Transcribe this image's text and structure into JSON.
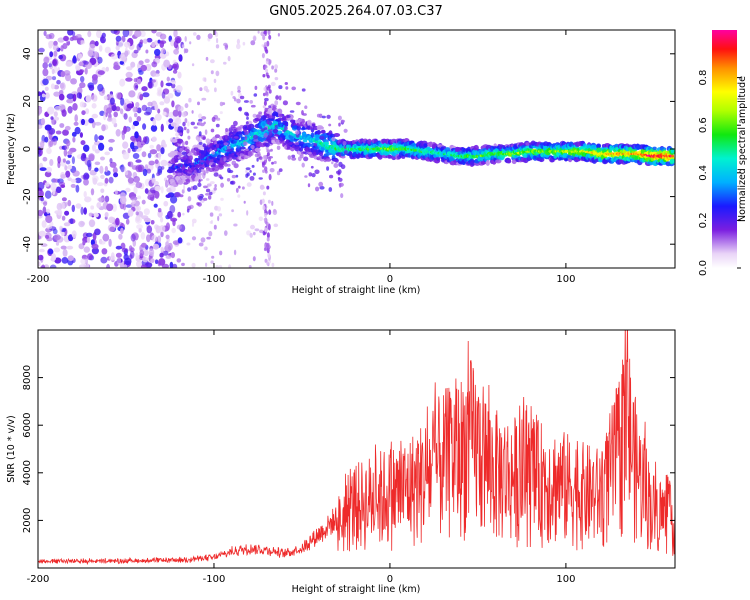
{
  "figure": {
    "title": "GN05.2025.264.07.03.C37"
  },
  "chart_data": [
    {
      "type": "heatmap",
      "name": "spectrogram",
      "title": "GN05.2025.264.07.03.C37",
      "xlabel": "Height of straight line (km)",
      "ylabel": "Frequency (Hz)",
      "xlim": [
        -200,
        162
      ],
      "ylim": [
        -50,
        50
      ],
      "x_ticks": [
        -200,
        -100,
        0,
        100
      ],
      "y_ticks": [
        -40,
        -20,
        0,
        20,
        40
      ],
      "colorbar": {
        "label": "Normalized spectral amplitude",
        "range": [
          0.0,
          1.0
        ],
        "ticks": [
          "0.0",
          "0.2",
          "0.4",
          "0.6",
          "0.8"
        ]
      },
      "ridge": {
        "x": [
          -125,
          -110,
          -100,
          -90,
          -80,
          -72,
          -65,
          -55,
          -45,
          -38,
          -30,
          -20,
          -10,
          0,
          10,
          20,
          30,
          40,
          50,
          60,
          70,
          80,
          90,
          100,
          110,
          120,
          130,
          140,
          150,
          160
        ],
        "freq": [
          -8,
          -6,
          -2,
          1,
          4,
          8,
          10,
          6,
          4,
          2,
          0,
          0,
          0,
          0,
          0,
          -1,
          -2,
          -3,
          -3,
          -2,
          -2,
          -1,
          -1,
          -1,
          -1,
          -2,
          -2,
          -2,
          -3,
          -3
        ],
        "amplitude": [
          0.2,
          0.25,
          0.3,
          0.35,
          0.4,
          0.45,
          0.4,
          0.4,
          0.38,
          0.45,
          0.5,
          0.5,
          0.55,
          0.6,
          0.55,
          0.5,
          0.45,
          0.5,
          0.55,
          0.55,
          0.6,
          0.6,
          0.6,
          0.65,
          0.7,
          0.75,
          0.8,
          0.8,
          0.95,
          0.9
        ]
      }
    },
    {
      "type": "line",
      "name": "snr",
      "xlabel": "Height of straight line (km)",
      "ylabel": "SNR (10 * v/v)",
      "xlim": [
        -200,
        162
      ],
      "ylim": [
        0,
        10000
      ],
      "x_ticks": [
        -200,
        -100,
        0,
        100
      ],
      "y_ticks": [
        2000,
        4000,
        6000,
        8000
      ],
      "color": "#ee2a2a",
      "envelope": {
        "x": [
          -200,
          -160,
          -120,
          -100,
          -90,
          -80,
          -70,
          -60,
          -50,
          -40,
          -30,
          -20,
          -10,
          0,
          10,
          20,
          30,
          40,
          45,
          50,
          60,
          70,
          80,
          90,
          100,
          110,
          120,
          130,
          135,
          140,
          150,
          160
        ],
        "y": [
          300,
          300,
          350,
          500,
          800,
          1000,
          900,
          700,
          1000,
          1800,
          2600,
          3800,
          4200,
          4500,
          4800,
          5500,
          6500,
          7000,
          7800,
          7200,
          5800,
          5600,
          5500,
          5300,
          5000,
          4600,
          4400,
          7000,
          8800,
          6000,
          3500,
          3000
        ]
      }
    }
  ]
}
